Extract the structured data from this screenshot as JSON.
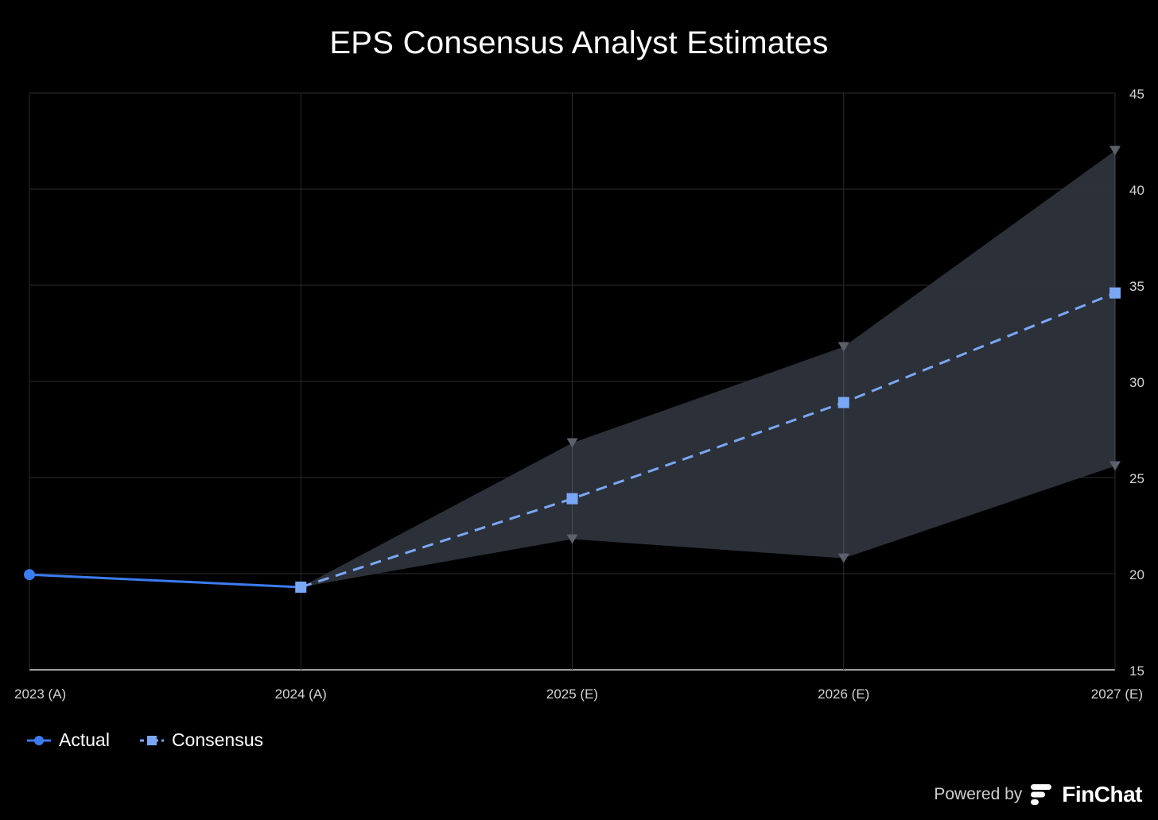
{
  "chart_data": {
    "type": "line",
    "title": "EPS Consensus Analyst Estimates",
    "categories": [
      "2023 (A)",
      "2024 (A)",
      "2025 (E)",
      "2026 (E)",
      "2027 (E)"
    ],
    "ylim": [
      15,
      45
    ],
    "yticks": [
      15,
      20,
      25,
      30,
      35,
      40,
      45
    ],
    "grid": true,
    "legend_position": "bottom-left",
    "series": [
      {
        "name": "Actual",
        "values": [
          19.95,
          19.3,
          null,
          null,
          null
        ],
        "color": "#3b7cf0",
        "marker": "circle",
        "style": "solid"
      },
      {
        "name": "Consensus",
        "values": [
          null,
          19.3,
          23.9,
          28.9,
          34.6
        ],
        "color": "#7aa7f5",
        "marker": "square",
        "style": "dashed"
      }
    ],
    "range": {
      "high": [
        null,
        19.3,
        26.8,
        31.8,
        42.0
      ],
      "low": [
        null,
        19.3,
        21.8,
        20.8,
        25.6
      ],
      "fill_color": "#2e333c",
      "marker_color": "#5b606a"
    }
  },
  "footer": {
    "powered_by": "Powered by",
    "brand": "FinChat"
  },
  "colors": {
    "background": "#000000",
    "grid": "#2b2b2b",
    "axis_text": "#d4d4d4"
  }
}
